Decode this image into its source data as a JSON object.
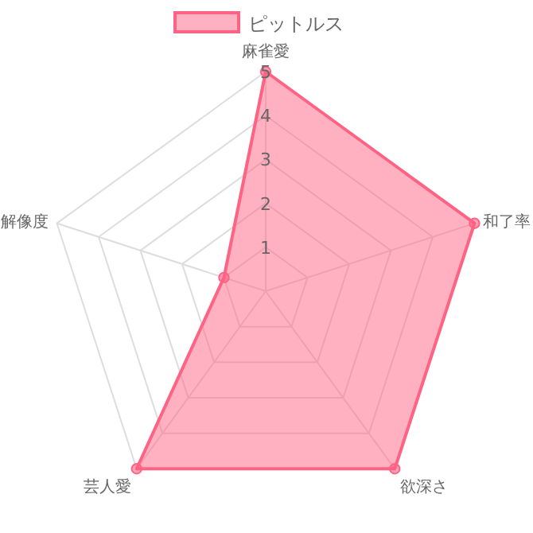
{
  "chart_data": {
    "type": "radar",
    "categories": [
      "麻雀愛",
      "和了率",
      "欲深さ",
      "芸人愛",
      "解像度"
    ],
    "series": [
      {
        "name": "ピットルス",
        "color": "#ff6384",
        "values": [
          5,
          5,
          5,
          5,
          1
        ]
      }
    ],
    "ylim": [
      0,
      5
    ],
    "yticks": [
      1,
      2,
      3,
      4,
      5
    ],
    "legend": "top",
    "marker": "circle"
  }
}
